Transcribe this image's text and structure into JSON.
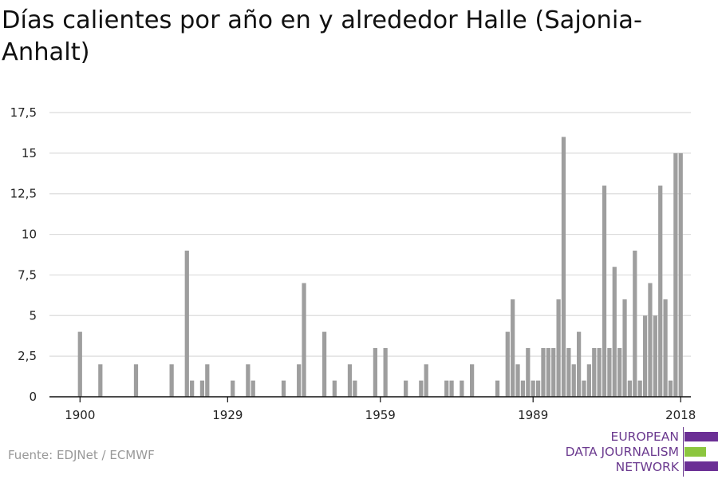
{
  "title": "Días calientes por año en y alrededor Halle (Sajonia-Anhalt)",
  "source": "Fuente: EDJNet / ECMWF",
  "logo": {
    "lines": [
      "EUROPEAN",
      "DATA JOURNALISM",
      "NETWORK"
    ],
    "colors": {
      "purple": "#6b2f95",
      "green": "#8cc63f"
    }
  },
  "colors": {
    "bar": "#9e9e9e",
    "grid": "#dcdcdc",
    "axis": "#111111"
  },
  "chart_data": {
    "type": "bar",
    "title": "Días calientes por año en y alrededor Halle (Sajonia-Anhalt)",
    "xlabel": "",
    "ylabel": "",
    "ylim": [
      0,
      17.5
    ],
    "y_ticks": [
      0,
      2.5,
      5,
      7.5,
      10,
      12.5,
      15,
      17.5
    ],
    "y_tick_labels": [
      "0",
      "2,5",
      "5",
      "7,5",
      "10",
      "12,5",
      "15",
      "17,5"
    ],
    "x_range": [
      1894,
      2020
    ],
    "x_ticks": [
      1900,
      1929,
      1959,
      1989,
      2018
    ],
    "x_tick_labels": [
      "1900",
      "1929",
      "1959",
      "1989",
      "2018"
    ],
    "grid": true,
    "x": [
      1900,
      1904,
      1911,
      1918,
      1921,
      1922,
      1924,
      1925,
      1930,
      1933,
      1934,
      1940,
      1943,
      1944,
      1948,
      1950,
      1953,
      1954,
      1958,
      1960,
      1964,
      1967,
      1968,
      1972,
      1973,
      1975,
      1977,
      1982,
      1984,
      1985,
      1986,
      1987,
      1988,
      1989,
      1990,
      1991,
      1992,
      1993,
      1994,
      1995,
      1996,
      1997,
      1998,
      1999,
      2000,
      2001,
      2002,
      2003,
      2004,
      2005,
      2006,
      2007,
      2008,
      2009,
      2010,
      2011,
      2012,
      2013,
      2014,
      2015,
      2016,
      2017,
      2018
    ],
    "values": [
      4,
      2,
      2,
      2,
      9,
      1,
      1,
      2,
      1,
      2,
      1,
      1,
      2,
      7,
      4,
      1,
      2,
      1,
      3,
      3,
      1,
      1,
      2,
      1,
      1,
      1,
      2,
      1,
      4,
      6,
      2,
      1,
      3,
      1,
      1,
      3,
      3,
      3,
      6,
      16,
      3,
      2,
      4,
      1,
      2,
      3,
      3,
      13,
      3,
      8,
      3,
      6,
      1,
      9,
      1,
      5,
      7,
      5,
      13,
      6,
      1,
      15,
      15
    ]
  }
}
